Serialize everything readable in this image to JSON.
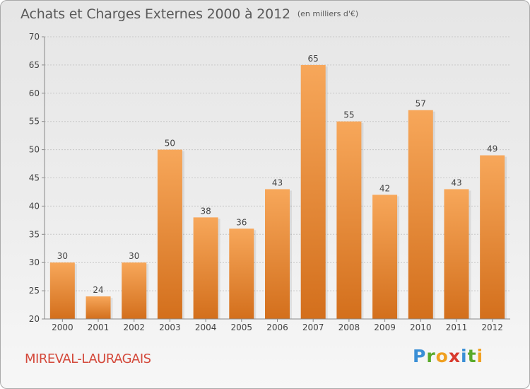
{
  "header": {
    "title": "Achats et Charges Externes 2000 à 2012",
    "subtitle": "(en milliers d'€)"
  },
  "footer": {
    "commune": "MIREVAL-LAURAGAIS",
    "brand": {
      "letters": [
        "P",
        "r",
        "o",
        "x",
        "i",
        "t",
        "i"
      ],
      "colors": [
        "#3a8fd6",
        "#5aaa2a",
        "#f0a020",
        "#d83a2e",
        "#3a8fd6",
        "#5aaa2a",
        "#f0a020"
      ]
    }
  },
  "colors": {
    "bar_light": "#f7a75a",
    "bar_dark": "#d36f1c",
    "grid": "#c8c8c8",
    "axis_text": "#444444"
  },
  "chart_data": {
    "type": "bar",
    "categories": [
      "2000",
      "2001",
      "2002",
      "2003",
      "2004",
      "2005",
      "2006",
      "2007",
      "2008",
      "2009",
      "2010",
      "2011",
      "2012"
    ],
    "values": [
      30,
      24,
      30,
      50,
      38,
      36,
      43,
      65,
      55,
      42,
      57,
      43,
      49
    ],
    "data_labels": [
      "30",
      "24",
      "30",
      "50",
      "38",
      "36",
      "43",
      "65",
      "55",
      "42",
      "57",
      "43",
      "49"
    ],
    "title": "Achats et Charges Externes 2000 à 2012",
    "subtitle": "(en milliers d'€)",
    "ylim": [
      20,
      70
    ],
    "yticks": [
      20,
      25,
      30,
      35,
      40,
      45,
      50,
      55,
      60,
      65,
      70
    ],
    "grid": "horizontal dashed"
  }
}
